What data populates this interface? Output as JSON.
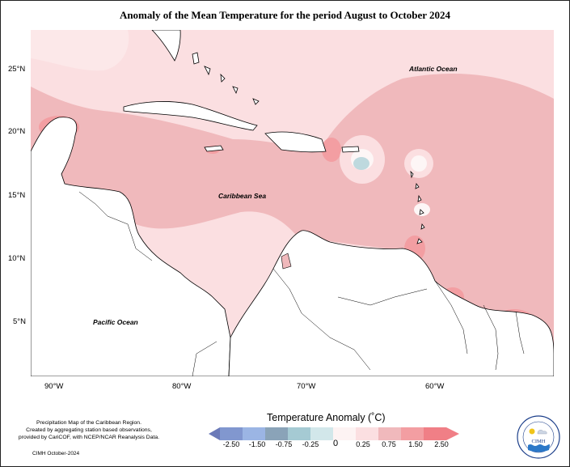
{
  "title": "Anomaly of the Mean Temperature for the period August to October 2024",
  "lat_labels": [
    "25°N",
    "20°N",
    "15°N",
    "10°N",
    "5°N"
  ],
  "lon_labels": [
    "90°W",
    "80°W",
    "70°W",
    "60°W"
  ],
  "ocean_labels": {
    "atlantic": "Atlantic Ocean",
    "caribbean": "Caribbean Sea",
    "pacific": "Pacific Ocean"
  },
  "credit": [
    "Precipitation Map of the Caribbean Region.",
    "Created by aggregating station based observations,",
    "provided by CariCOF, with NCEP/NCAR Reanalysis Data."
  ],
  "footer": "CIMH October-2024",
  "legend": {
    "title": "Temperature Anomaly (˚C)",
    "ticks": [
      "-2.50",
      "-1.50",
      "-0.75",
      "-0.25",
      "0",
      "0.25",
      "0.75",
      "1.50",
      "2.50"
    ],
    "colors": [
      "#6b7ab8",
      "#8197cf",
      "#9bb5e4",
      "#8aa3b8",
      "#a5cad3",
      "#d2e7ea",
      "#fdf3f3",
      "#fbdfe1",
      "#f0b9bc",
      "#f39ea2",
      "#f07f86"
    ]
  },
  "logo": {
    "acronym": "CIMH"
  }
}
